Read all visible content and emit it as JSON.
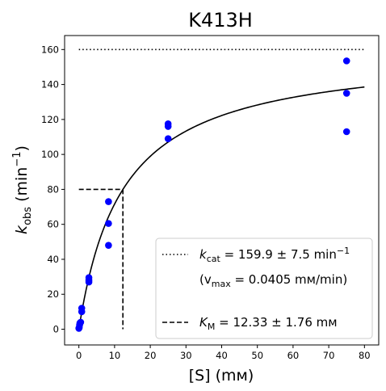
{
  "chart_data": {
    "type": "scatter",
    "title": "K413H",
    "xlabel": "[S] (mм)",
    "ylabel_main": "k",
    "ylabel_sub": "obs",
    "ylabel_rest": " (min",
    "ylabel_sup": "−1",
    "ylabel_end": ")",
    "xlim": [
      -4,
      84
    ],
    "ylim": [
      -9,
      168
    ],
    "x_ticks": [
      0,
      10,
      20,
      30,
      40,
      50,
      60,
      70,
      80
    ],
    "x_tick_labels": [
      "0",
      "10",
      "20",
      "30",
      "40",
      "50",
      "60",
      "70",
      "80"
    ],
    "y_ticks": [
      0,
      20,
      40,
      60,
      80,
      100,
      120,
      140,
      160
    ],
    "y_tick_labels": [
      "0",
      "20",
      "40",
      "60",
      "80",
      "100",
      "120",
      "140",
      "160"
    ],
    "grid": false,
    "legend_position": "lower-right",
    "points": {
      "color": "#0000ff",
      "x": [
        0,
        0.1,
        0.2,
        0.3,
        0.5,
        0.8,
        0.8,
        2.8,
        2.8,
        2.8,
        8.3,
        8.3,
        8.3,
        25,
        25,
        25,
        75,
        75,
        75
      ],
      "y": [
        0.5,
        1,
        2.5,
        3.5,
        4,
        10,
        12,
        27,
        28,
        29.5,
        48,
        60.5,
        73,
        109,
        116,
        117.5,
        113,
        135,
        153.5
      ]
    },
    "fit": {
      "model": "michaelis-menten",
      "kcat": 159.9,
      "km": 12.33,
      "x_range": [
        0,
        80
      ],
      "color": "#000000"
    },
    "kcat_line": {
      "y": 160,
      "x_range": [
        0,
        80
      ],
      "style": "dotted"
    },
    "km_marker": {
      "x": 12.33,
      "y": 80,
      "x_start": 0,
      "style": "dashed"
    },
    "legend": {
      "kcat_prefix": "k",
      "kcat_sub": "cat",
      "kcat_text": " = 159.9 ± 7.5 min",
      "kcat_sup": "−1",
      "vmax_open": "(v",
      "vmax_sub": "max",
      "vmax_text": " = 0.0405 mм/min)",
      "km_prefix": "K",
      "km_sub": "M",
      "km_text": " = 12.33 ± 1.76 mм"
    }
  }
}
